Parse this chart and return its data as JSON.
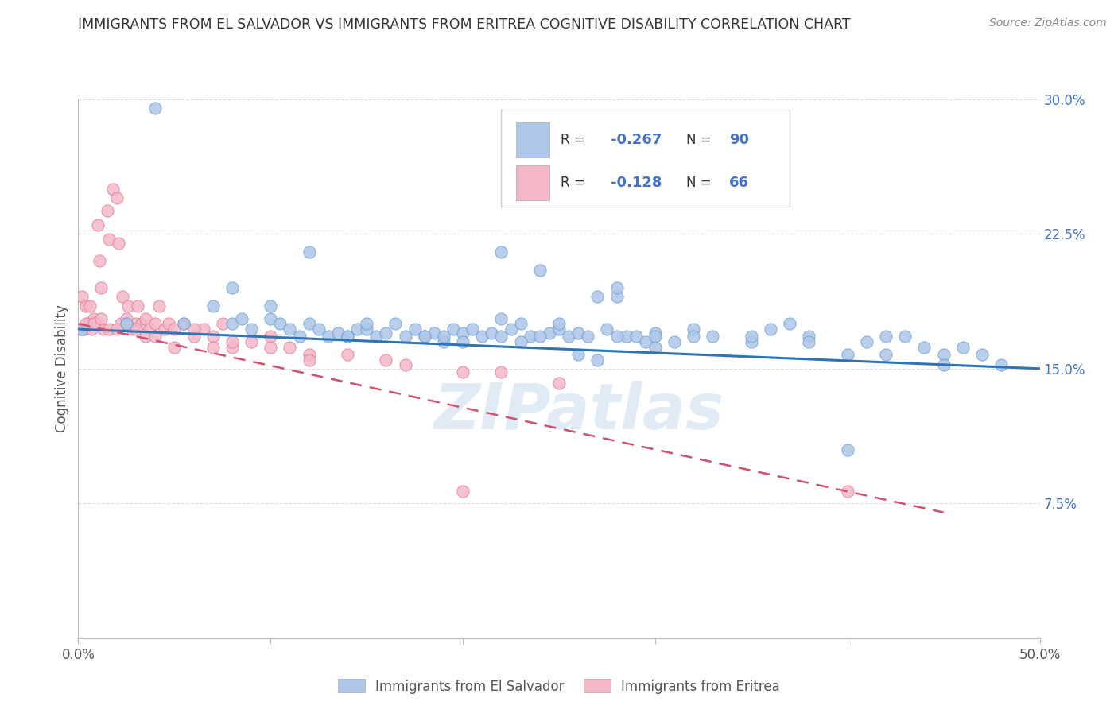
{
  "title": "IMMIGRANTS FROM EL SALVADOR VS IMMIGRANTS FROM ERITREA COGNITIVE DISABILITY CORRELATION CHART",
  "source": "Source: ZipAtlas.com",
  "ylabel": "Cognitive Disability",
  "x_min": 0.0,
  "x_max": 0.5,
  "y_min": 0.0,
  "y_max": 0.3,
  "y_ticks": [
    0.075,
    0.15,
    0.225,
    0.3
  ],
  "y_tick_labels": [
    "7.5%",
    "15.0%",
    "22.5%",
    "30.0%"
  ],
  "el_salvador_color": "#aec6e8",
  "el_salvador_edge_color": "#5b9bd5",
  "el_salvador_line_color": "#2e75b6",
  "eritrea_color": "#f4b8c8",
  "eritrea_edge_color": "#e07090",
  "eritrea_line_color": "#d05070",
  "legend_R1": "-0.267",
  "legend_N1": "90",
  "legend_R2": "-0.128",
  "legend_N2": "66",
  "watermark": "ZIPatlas",
  "grid_color": "#dddddd",
  "background_color": "#ffffff",
  "R_color": "#4472c4",
  "N_color": "#4472c4",
  "label_color": "#4472c4",
  "el_salvador_x": [
    0.002,
    0.025,
    0.04,
    0.055,
    0.07,
    0.08,
    0.085,
    0.09,
    0.1,
    0.105,
    0.11,
    0.115,
    0.12,
    0.125,
    0.13,
    0.135,
    0.14,
    0.145,
    0.15,
    0.155,
    0.16,
    0.165,
    0.17,
    0.175,
    0.18,
    0.185,
    0.19,
    0.195,
    0.2,
    0.205,
    0.21,
    0.215,
    0.22,
    0.225,
    0.23,
    0.235,
    0.24,
    0.245,
    0.25,
    0.255,
    0.26,
    0.265,
    0.27,
    0.275,
    0.28,
    0.285,
    0.29,
    0.295,
    0.3,
    0.31,
    0.32,
    0.33,
    0.35,
    0.37,
    0.38,
    0.4,
    0.41,
    0.42,
    0.43,
    0.44,
    0.45,
    0.46,
    0.47,
    0.48,
    0.08,
    0.12,
    0.15,
    0.18,
    0.22,
    0.25,
    0.28,
    0.3,
    0.35,
    0.4,
    0.45,
    0.1,
    0.14,
    0.2,
    0.24,
    0.27,
    0.32,
    0.36,
    0.38,
    0.42,
    0.22,
    0.26,
    0.3,
    0.19,
    0.23,
    0.28
  ],
  "el_salvador_y": [
    0.172,
    0.175,
    0.295,
    0.175,
    0.185,
    0.175,
    0.178,
    0.172,
    0.178,
    0.175,
    0.172,
    0.168,
    0.175,
    0.172,
    0.168,
    0.17,
    0.168,
    0.172,
    0.172,
    0.168,
    0.17,
    0.175,
    0.168,
    0.172,
    0.168,
    0.17,
    0.165,
    0.172,
    0.17,
    0.172,
    0.168,
    0.17,
    0.178,
    0.172,
    0.175,
    0.168,
    0.205,
    0.17,
    0.172,
    0.168,
    0.17,
    0.168,
    0.19,
    0.172,
    0.19,
    0.168,
    0.168,
    0.165,
    0.17,
    0.165,
    0.172,
    0.168,
    0.165,
    0.175,
    0.168,
    0.158,
    0.165,
    0.168,
    0.168,
    0.162,
    0.158,
    0.162,
    0.158,
    0.152,
    0.195,
    0.215,
    0.175,
    0.168,
    0.215,
    0.175,
    0.195,
    0.168,
    0.168,
    0.105,
    0.152,
    0.185,
    0.168,
    0.165,
    0.168,
    0.155,
    0.168,
    0.172,
    0.165,
    0.158,
    0.168,
    0.158,
    0.162,
    0.168,
    0.165,
    0.168
  ],
  "eritrea_x": [
    0.001,
    0.002,
    0.003,
    0.004,
    0.005,
    0.006,
    0.007,
    0.008,
    0.009,
    0.01,
    0.011,
    0.012,
    0.013,
    0.015,
    0.016,
    0.018,
    0.02,
    0.021,
    0.022,
    0.023,
    0.025,
    0.026,
    0.028,
    0.03,
    0.031,
    0.033,
    0.035,
    0.037,
    0.04,
    0.042,
    0.045,
    0.047,
    0.05,
    0.055,
    0.06,
    0.065,
    0.07,
    0.075,
    0.08,
    0.09,
    0.1,
    0.11,
    0.12,
    0.14,
    0.16,
    0.2,
    0.004,
    0.008,
    0.012,
    0.016,
    0.02,
    0.025,
    0.03,
    0.035,
    0.04,
    0.05,
    0.06,
    0.07,
    0.08,
    0.1,
    0.12,
    0.17,
    0.2,
    0.22,
    0.25,
    0.4
  ],
  "eritrea_y": [
    0.172,
    0.19,
    0.172,
    0.185,
    0.175,
    0.185,
    0.172,
    0.178,
    0.175,
    0.23,
    0.21,
    0.195,
    0.172,
    0.238,
    0.222,
    0.25,
    0.245,
    0.22,
    0.175,
    0.19,
    0.178,
    0.185,
    0.172,
    0.175,
    0.185,
    0.175,
    0.178,
    0.172,
    0.175,
    0.185,
    0.172,
    0.175,
    0.172,
    0.175,
    0.168,
    0.172,
    0.168,
    0.175,
    0.162,
    0.165,
    0.168,
    0.162,
    0.158,
    0.158,
    0.155,
    0.082,
    0.175,
    0.175,
    0.178,
    0.172,
    0.172,
    0.175,
    0.172,
    0.168,
    0.168,
    0.162,
    0.172,
    0.162,
    0.165,
    0.162,
    0.155,
    0.152,
    0.148,
    0.148,
    0.142,
    0.082
  ]
}
